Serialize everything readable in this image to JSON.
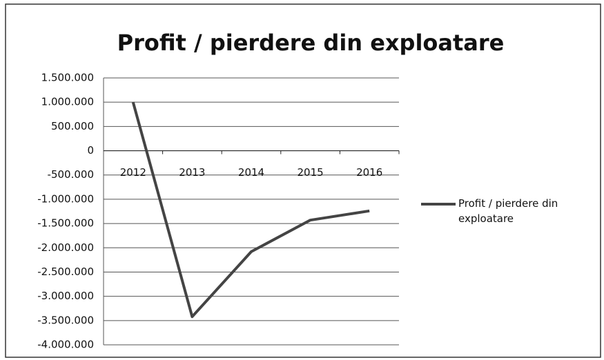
{
  "chart_data": {
    "type": "line",
    "title": "Profit / pierdere din exploatare",
    "categories": [
      "2012",
      "2013",
      "2014",
      "2015",
      "2016"
    ],
    "series": [
      {
        "name": "Profit / pierdere din exploatare",
        "color": "#444444",
        "values": [
          1000000,
          -3420000,
          -2080000,
          -1430000,
          -1240000
        ]
      }
    ],
    "ylim": [
      -4000000,
      1500000
    ],
    "yticks": [
      {
        "value": -4000000,
        "label": "-4.000.000"
      },
      {
        "value": -3500000,
        "label": "-3.500.000"
      },
      {
        "value": -3000000,
        "label": "-3.000.000"
      },
      {
        "value": -2500000,
        "label": "-2.500.000"
      },
      {
        "value": -2000000,
        "label": "-2.000.000"
      },
      {
        "value": -1500000,
        "label": "-1.500.000"
      },
      {
        "value": -1000000,
        "label": "-1.000.000"
      },
      {
        "value": -500000,
        "label": "-500.000"
      },
      0,
      {
        "value": 500000,
        "label": "500.000"
      },
      {
        "value": 1000000,
        "label": "1.000.000"
      },
      {
        "value": 1500000,
        "label": "1.500.000"
      }
    ],
    "grid": true,
    "legend": "right"
  }
}
